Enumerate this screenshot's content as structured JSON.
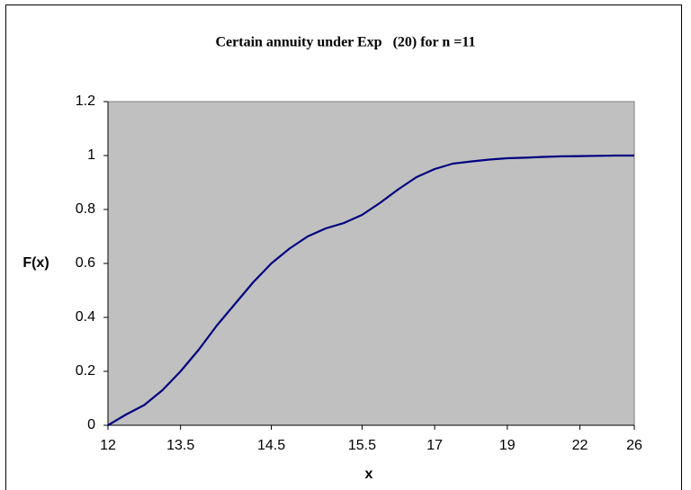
{
  "chart_data": {
    "type": "line",
    "title": "Certain annuity under Exp   (20) for n =11",
    "x_label": "x",
    "y_label": "F(x)",
    "categories": [
      12,
      null,
      null,
      null,
      13.5,
      null,
      null,
      null,
      null,
      14.5,
      null,
      null,
      null,
      null,
      15.5,
      null,
      null,
      null,
      17,
      null,
      null,
      null,
      19,
      null,
      null,
      null,
      22,
      null,
      null,
      26
    ],
    "values": [
      0,
      0.04,
      0.075,
      0.13,
      0.2,
      0.28,
      0.37,
      0.45,
      0.53,
      0.6,
      0.655,
      0.7,
      0.73,
      0.75,
      0.78,
      0.825,
      0.875,
      0.92,
      0.95,
      0.97,
      0.978,
      0.985,
      0.99,
      0.992,
      0.995,
      0.997,
      0.998,
      0.999,
      1,
      1
    ],
    "color": "#000080",
    "ylim": [
      0,
      1.2
    ],
    "yticks": [
      0,
      0.2,
      0.4,
      0.6,
      0.8,
      1,
      1.2
    ],
    "grid": false
  }
}
